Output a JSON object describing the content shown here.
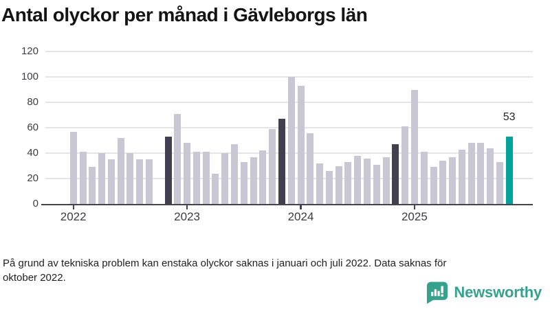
{
  "title": "Antal olyckor per månad i Gävleborgs län",
  "chart_data": {
    "type": "bar",
    "title": "Antal olyckor per månad i Gävleborgs län",
    "ylim": [
      0,
      120
    ],
    "yticks": [
      0,
      20,
      40,
      60,
      80,
      100,
      120
    ],
    "grid": "horizontal",
    "legend": "none",
    "year_ticks": [
      "2022",
      "2023",
      "2024",
      "2025"
    ],
    "annotation": {
      "text": "53",
      "month": "2025-11"
    },
    "colors": {
      "default": "#c9c7d3",
      "highlight": "#423f4e",
      "current": "#00a49b"
    },
    "series": [
      {
        "month": "2022-01",
        "value": 57,
        "role": "default"
      },
      {
        "month": "2022-02",
        "value": 41,
        "role": "default"
      },
      {
        "month": "2022-03",
        "value": 29,
        "role": "default"
      },
      {
        "month": "2022-04",
        "value": 40,
        "role": "default"
      },
      {
        "month": "2022-05",
        "value": 35,
        "role": "default"
      },
      {
        "month": "2022-06",
        "value": 52,
        "role": "default"
      },
      {
        "month": "2022-07",
        "value": 40,
        "role": "default"
      },
      {
        "month": "2022-08",
        "value": 35,
        "role": "default"
      },
      {
        "month": "2022-09",
        "value": 35,
        "role": "default"
      },
      {
        "month": "2022-10",
        "value": null,
        "role": "missing"
      },
      {
        "month": "2022-11",
        "value": 53,
        "role": "highlight"
      },
      {
        "month": "2022-12",
        "value": 71,
        "role": "default"
      },
      {
        "month": "2023-01",
        "value": 48,
        "role": "default"
      },
      {
        "month": "2023-02",
        "value": 41,
        "role": "default"
      },
      {
        "month": "2023-03",
        "value": 41,
        "role": "default"
      },
      {
        "month": "2023-04",
        "value": 24,
        "role": "default"
      },
      {
        "month": "2023-05",
        "value": 40,
        "role": "default"
      },
      {
        "month": "2023-06",
        "value": 47,
        "role": "default"
      },
      {
        "month": "2023-07",
        "value": 33,
        "role": "default"
      },
      {
        "month": "2023-08",
        "value": 37,
        "role": "default"
      },
      {
        "month": "2023-09",
        "value": 42,
        "role": "default"
      },
      {
        "month": "2023-10",
        "value": 59,
        "role": "default"
      },
      {
        "month": "2023-11",
        "value": 67,
        "role": "highlight"
      },
      {
        "month": "2023-12",
        "value": 100,
        "role": "default"
      },
      {
        "month": "2024-01",
        "value": 93,
        "role": "default"
      },
      {
        "month": "2024-02",
        "value": 56,
        "role": "default"
      },
      {
        "month": "2024-03",
        "value": 32,
        "role": "default"
      },
      {
        "month": "2024-04",
        "value": 26,
        "role": "default"
      },
      {
        "month": "2024-05",
        "value": 30,
        "role": "default"
      },
      {
        "month": "2024-06",
        "value": 33,
        "role": "default"
      },
      {
        "month": "2024-07",
        "value": 38,
        "role": "default"
      },
      {
        "month": "2024-08",
        "value": 36,
        "role": "default"
      },
      {
        "month": "2024-09",
        "value": 31,
        "role": "default"
      },
      {
        "month": "2024-10",
        "value": 37,
        "role": "default"
      },
      {
        "month": "2024-11",
        "value": 47,
        "role": "highlight"
      },
      {
        "month": "2024-12",
        "value": 61,
        "role": "default"
      },
      {
        "month": "2025-01",
        "value": 90,
        "role": "default"
      },
      {
        "month": "2025-02",
        "value": 41,
        "role": "default"
      },
      {
        "month": "2025-03",
        "value": 29,
        "role": "default"
      },
      {
        "month": "2025-04",
        "value": 34,
        "role": "default"
      },
      {
        "month": "2025-05",
        "value": 37,
        "role": "default"
      },
      {
        "month": "2025-06",
        "value": 43,
        "role": "default"
      },
      {
        "month": "2025-07",
        "value": 48,
        "role": "default"
      },
      {
        "month": "2025-08",
        "value": 48,
        "role": "default"
      },
      {
        "month": "2025-09",
        "value": 44,
        "role": "default"
      },
      {
        "month": "2025-10",
        "value": 33,
        "role": "default"
      },
      {
        "month": "2025-11",
        "value": 53,
        "role": "current"
      }
    ]
  },
  "footnote": {
    "line1": "På grund av tekniska problem kan enstaka olyckor saknas i januari och juli 2022. Data saknas för",
    "line2": "oktober 2022."
  },
  "logo": {
    "name": "Newsworthy",
    "color": "#35a28e"
  }
}
